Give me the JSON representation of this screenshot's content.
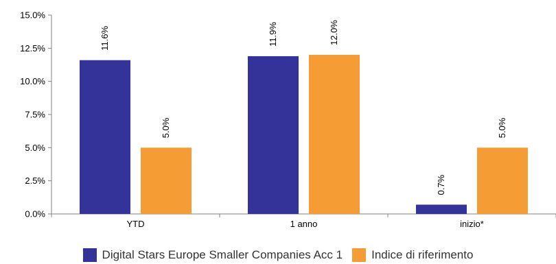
{
  "chart_data": {
    "type": "bar",
    "categories": [
      "YTD",
      "1 anno",
      "inizio*"
    ],
    "series": [
      {
        "name": "Digital Stars Europe Smaller Companies Acc 1",
        "values": [
          11.6,
          11.9,
          0.7
        ],
        "labels": [
          "11.6%",
          "11.9%",
          "0.7%"
        ],
        "color": "#333399"
      },
      {
        "name": "Indice di riferimento",
        "values": [
          5.0,
          12.0,
          5.0
        ],
        "labels": [
          "5.0%",
          "12.0%",
          "5.0%"
        ],
        "color": "#F59C34"
      }
    ],
    "yticks": [
      "0.0%",
      "2.5%",
      "5.0%",
      "7.5%",
      "10.0%",
      "12.5%",
      "15.0%"
    ],
    "ylim": [
      0,
      15
    ],
    "grid": false,
    "legend_position": "bottom"
  }
}
